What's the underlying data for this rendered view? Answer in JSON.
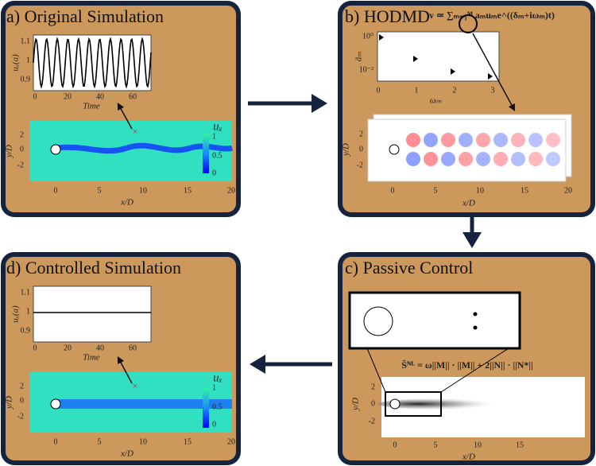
{
  "panels": {
    "a": {
      "title": "a) Original Simulation",
      "inset": {
        "ylabel": "uₓ(a)",
        "yticks": [
          "1.1",
          "1",
          "0.9"
        ],
        "xticks": [
          "0",
          "20",
          "40",
          "60"
        ],
        "xlabel": "Time"
      },
      "field": {
        "ylabel": "y/D",
        "yticks": [
          "2",
          "0",
          "-2"
        ],
        "xticks": [
          "0",
          "5",
          "10",
          "15",
          "20"
        ],
        "xlabel": "x/D",
        "colorbar": {
          "label": "uₓ",
          "ticks": [
            "1",
            "0.5",
            "0"
          ]
        }
      }
    },
    "b": {
      "title": "b) HODMD",
      "equation": "v ≃ ∑ₘ₌₁ᴹ aₘuₘe^((δₘ+iωₘ)t)",
      "inset": {
        "ylabel": "ãₘ",
        "yticks": [
          "10⁰",
          "10⁻²"
        ],
        "xticks": [
          "0",
          "1",
          "2",
          "3"
        ],
        "xlabel": "ωₘ"
      },
      "field": {
        "ylabel": "y/D",
        "yticks": [
          "2",
          "0",
          "-2"
        ],
        "xticks": [
          "0",
          "5",
          "10",
          "15",
          "20"
        ],
        "xlabel": "x/D"
      }
    },
    "c": {
      "title": "c) Passive Control",
      "equation": "Ŝᴺᴸ = ω||M|| · ||M|| + 2||N|| · ||N*||",
      "field": {
        "ylabel": "y/D",
        "yticks": [
          "2",
          "0",
          "-2"
        ],
        "xticks": [
          "0",
          "5",
          "10",
          "15"
        ],
        "xlabel": "x/D"
      }
    },
    "d": {
      "title": "d) Controlled Simulation",
      "inset": {
        "ylabel": "uₓ(a)",
        "yticks": [
          "1.1",
          "1",
          "0.9"
        ],
        "xticks": [
          "0",
          "20",
          "40",
          "60"
        ],
        "xlabel": "Time"
      },
      "field": {
        "ylabel": "y/D",
        "yticks": [
          "2",
          "0",
          "-2"
        ],
        "xticks": [
          "0",
          "5",
          "10",
          "15",
          "20"
        ],
        "xlabel": "x/D",
        "colorbar": {
          "label": "uₓ",
          "ticks": [
            "1",
            "0.5",
            "0"
          ]
        }
      }
    }
  }
}
